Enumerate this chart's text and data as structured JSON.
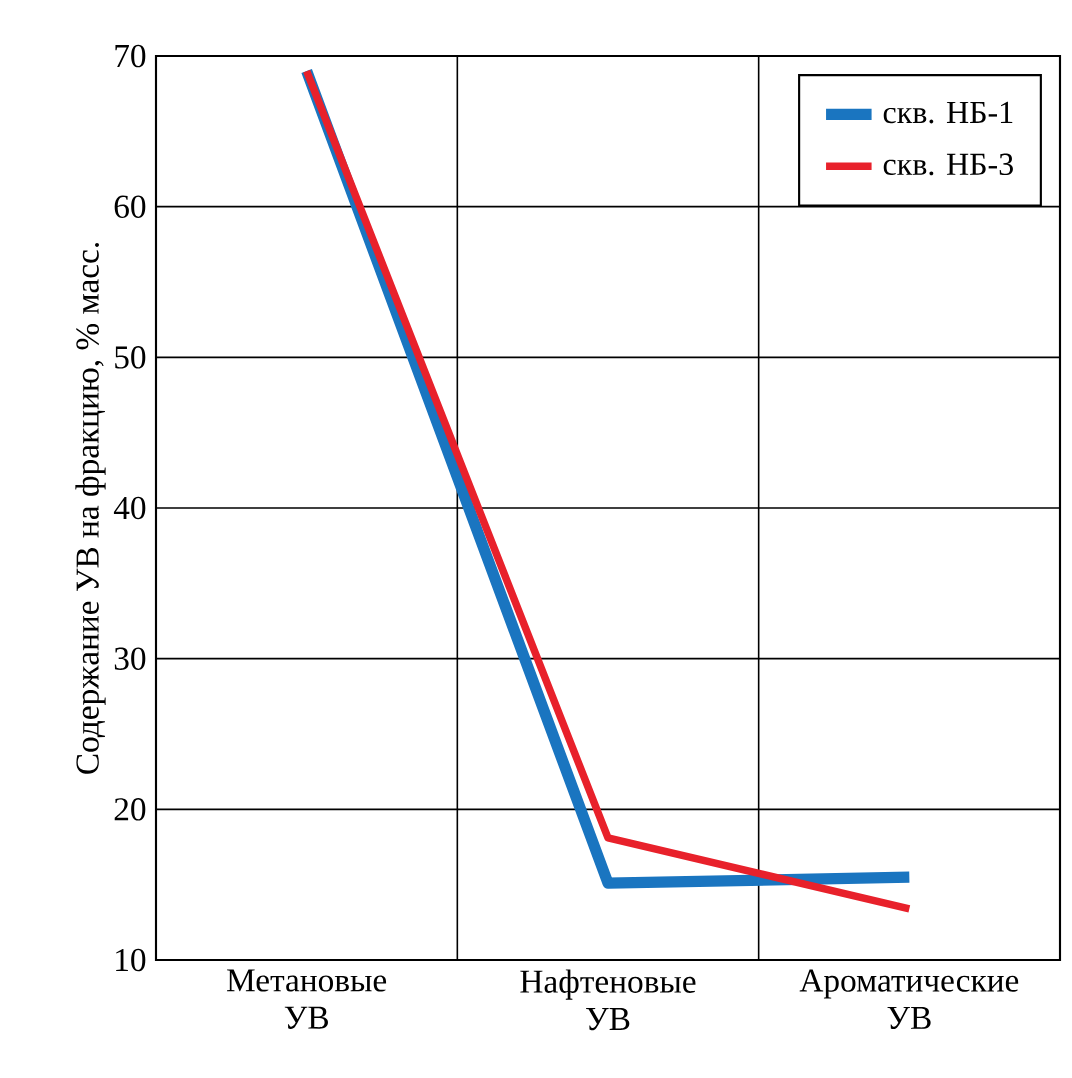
{
  "chart_data": {
    "type": "line",
    "ylabel": "Содержание УВ на фракцию, % масс.",
    "categories": [
      "Метановые УВ",
      "Нафтеновые УВ",
      "Ароматические УВ"
    ],
    "series": [
      {
        "name": "скв. НБ-1",
        "color": "#1a75c0",
        "values": [
          69,
          15.1,
          15.5
        ]
      },
      {
        "name": "скв. НБ-3",
        "color": "#e8212b",
        "values": [
          69,
          18.1,
          13.4
        ]
      }
    ],
    "ylim": [
      10,
      70
    ],
    "yticks": [
      10,
      20,
      30,
      40,
      50,
      60,
      70
    ],
    "grid": true,
    "legend": "top right",
    "marker": "none",
    "line_style": "solid"
  }
}
